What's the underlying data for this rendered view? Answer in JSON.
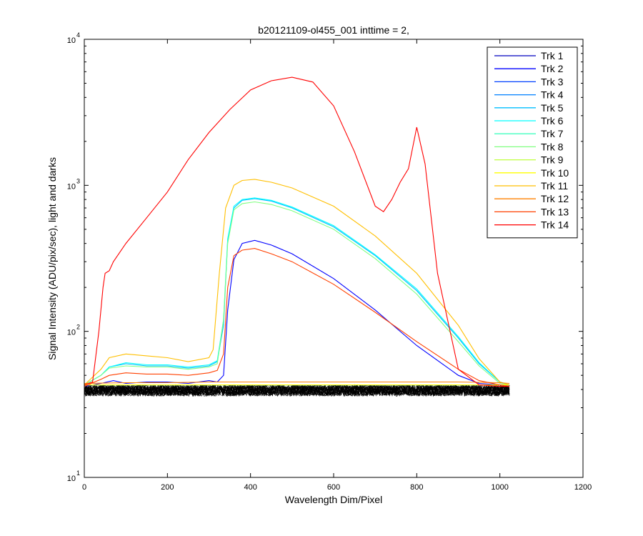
{
  "chart_data": {
    "type": "line",
    "title": "b20121109-ol455_001 inttime = 2,",
    "xlabel": "Wavelength Dim/Pixel",
    "ylabel": "Signal Intensity (ADU/pix/sec), light and darks",
    "xlim": [
      0,
      1200
    ],
    "ylim": [
      10,
      10000
    ],
    "yscale": "log",
    "grid": false,
    "legend_position": "top-right",
    "x_ticks": [
      0,
      200,
      400,
      600,
      800,
      1000,
      1200
    ],
    "x_tick_labels": [
      "0",
      "200",
      "400",
      "600",
      "800",
      "1000",
      "1200"
    ],
    "y_ticks": [
      {
        "value": 10,
        "base": "10",
        "exp": "1"
      },
      {
        "value": 100,
        "base": "10",
        "exp": "2"
      },
      {
        "value": 1000,
        "base": "10",
        "exp": "3"
      },
      {
        "value": 10000,
        "base": "10",
        "exp": "4"
      }
    ],
    "darks": {
      "x_range": [
        0,
        1023
      ],
      "y_min": 36,
      "y_max": 43,
      "color": "#000000"
    },
    "series": [
      {
        "name": "Trk 1",
        "color": "#0000bf",
        "x": [
          0,
          30,
          60,
          100,
          150,
          200,
          250,
          300,
          330,
          345,
          360,
          380,
          400,
          420,
          500,
          600,
          700,
          800,
          900,
          950,
          1000,
          1023
        ],
        "y": [
          43,
          43,
          43,
          43,
          43,
          43,
          43,
          43,
          43,
          43,
          43,
          43,
          43,
          43,
          43,
          43,
          43,
          43,
          43,
          43,
          43,
          43
        ]
      },
      {
        "name": "Trk 2",
        "color": "#0000ff",
        "x": [
          0,
          40,
          70,
          100,
          150,
          200,
          250,
          300,
          320,
          335,
          345,
          360,
          380,
          410,
          450,
          500,
          600,
          700,
          800,
          900,
          950,
          1000,
          1023
        ],
        "y": [
          42,
          44,
          46,
          44,
          45,
          45,
          44,
          46,
          45,
          50,
          140,
          310,
          400,
          420,
          390,
          340,
          230,
          140,
          80,
          50,
          44,
          43,
          43
        ]
      },
      {
        "name": "Trk 3",
        "color": "#0040ff",
        "x": [
          0,
          30,
          60,
          100,
          150,
          200,
          250,
          300,
          330,
          345,
          360,
          380,
          400,
          420,
          500,
          600,
          700,
          800,
          900,
          950,
          1000,
          1023
        ],
        "y": [
          43,
          43,
          43,
          43,
          43,
          43,
          43,
          43,
          43,
          43,
          43,
          43,
          43,
          43,
          43,
          43,
          43,
          43,
          43,
          43,
          43,
          43
        ]
      },
      {
        "name": "Trk 4",
        "color": "#0080ff",
        "x": [
          0,
          30,
          60,
          100,
          150,
          200,
          250,
          300,
          330,
          345,
          360,
          380,
          400,
          420,
          500,
          600,
          700,
          800,
          900,
          950,
          1000,
          1023
        ],
        "y": [
          43,
          43,
          43,
          43,
          43,
          43,
          43,
          43,
          43,
          43,
          43,
          43,
          43,
          43,
          43,
          43,
          43,
          43,
          43,
          43,
          43,
          43
        ]
      },
      {
        "name": "Trk 5",
        "color": "#00bfff",
        "x": [
          0,
          40,
          60,
          100,
          150,
          200,
          250,
          300,
          320,
          335,
          345,
          360,
          380,
          410,
          450,
          500,
          600,
          700,
          800,
          900,
          950,
          1000,
          1023
        ],
        "y": [
          43,
          50,
          57,
          60,
          58,
          58,
          56,
          58,
          62,
          110,
          420,
          700,
          790,
          810,
          780,
          700,
          520,
          330,
          190,
          90,
          60,
          45,
          43
        ]
      },
      {
        "name": "Trk 6",
        "color": "#00ffff",
        "x": [
          0,
          40,
          60,
          100,
          150,
          200,
          250,
          300,
          320,
          335,
          345,
          360,
          380,
          410,
          450,
          500,
          600,
          700,
          800,
          900,
          950,
          1000,
          1023
        ],
        "y": [
          43,
          50,
          57,
          61,
          59,
          59,
          57,
          59,
          63,
          120,
          430,
          720,
          800,
          820,
          790,
          710,
          530,
          335,
          195,
          92,
          61,
          45,
          43
        ]
      },
      {
        "name": "Trk 7",
        "color": "#40ffbf",
        "x": [
          0,
          30,
          60,
          100,
          150,
          200,
          250,
          300,
          330,
          345,
          360,
          380,
          400,
          420,
          500,
          600,
          700,
          800,
          900,
          950,
          1000,
          1023
        ],
        "y": [
          43,
          43,
          43,
          43,
          43,
          43,
          43,
          43,
          43,
          43,
          43,
          43,
          43,
          43,
          43,
          43,
          43,
          43,
          43,
          43,
          43,
          43
        ]
      },
      {
        "name": "Trk 8",
        "color": "#80ff80",
        "x": [
          0,
          40,
          60,
          100,
          150,
          200,
          250,
          300,
          320,
          335,
          345,
          360,
          380,
          410,
          450,
          500,
          600,
          700,
          800,
          900,
          950,
          1000,
          1023
        ],
        "y": [
          43,
          50,
          56,
          58,
          57,
          57,
          55,
          57,
          60,
          120,
          400,
          680,
          750,
          770,
          740,
          670,
          500,
          315,
          180,
          85,
          58,
          44,
          43
        ]
      },
      {
        "name": "Trk 9",
        "color": "#bfff40",
        "x": [
          0,
          30,
          60,
          100,
          150,
          200,
          250,
          300,
          330,
          345,
          360,
          380,
          400,
          420,
          500,
          600,
          700,
          800,
          900,
          950,
          1000,
          1023
        ],
        "y": [
          43,
          43,
          43,
          43,
          43,
          43,
          43,
          43,
          43,
          43,
          43,
          43,
          43,
          43,
          43,
          43,
          43,
          43,
          43,
          43,
          43,
          43
        ]
      },
      {
        "name": "Trk 10",
        "color": "#ffff00",
        "x": [
          0,
          30,
          60,
          100,
          150,
          200,
          250,
          300,
          330,
          345,
          360,
          380,
          400,
          420,
          500,
          600,
          700,
          800,
          900,
          950,
          1000,
          1023
        ],
        "y": [
          43,
          43,
          43,
          43,
          43,
          43,
          43,
          43,
          43,
          43,
          43,
          43,
          43,
          43,
          43,
          43,
          43,
          43,
          43,
          43,
          43,
          43
        ]
      },
      {
        "name": "Trk 11",
        "color": "#ffbf00",
        "x": [
          0,
          40,
          60,
          100,
          150,
          200,
          250,
          300,
          310,
          325,
          340,
          360,
          380,
          410,
          450,
          500,
          600,
          700,
          800,
          900,
          950,
          1000,
          1023
        ],
        "y": [
          43,
          55,
          66,
          70,
          68,
          66,
          62,
          66,
          75,
          250,
          700,
          1000,
          1080,
          1100,
          1050,
          960,
          720,
          450,
          250,
          110,
          65,
          45,
          43
        ]
      },
      {
        "name": "Trk 12",
        "color": "#ff8000",
        "x": [
          0,
          100,
          200,
          300,
          400,
          500,
          600,
          700,
          800,
          900,
          1000,
          1023
        ],
        "y": [
          44,
          44.5,
          44.5,
          45,
          45,
          45,
          45,
          45,
          45,
          45,
          44.5,
          44
        ]
      },
      {
        "name": "Trk 13",
        "color": "#ff4000",
        "x": [
          0,
          40,
          60,
          100,
          150,
          200,
          250,
          300,
          320,
          335,
          345,
          360,
          380,
          410,
          450,
          500,
          600,
          700,
          800,
          900,
          950,
          1000,
          1023
        ],
        "y": [
          42,
          47,
          50,
          52,
          51,
          51,
          50,
          52,
          54,
          70,
          200,
          330,
          360,
          370,
          340,
          300,
          210,
          135,
          85,
          55,
          46,
          43,
          42
        ]
      },
      {
        "name": "Trk 14",
        "color": "#ff0000",
        "x": [
          0,
          20,
          35,
          45,
          50,
          60,
          70,
          100,
          150,
          200,
          250,
          300,
          350,
          400,
          450,
          500,
          550,
          600,
          650,
          700,
          720,
          740,
          760,
          780,
          800,
          820,
          850,
          900,
          950,
          1000,
          1023
        ],
        "y": [
          43,
          45,
          100,
          200,
          250,
          260,
          300,
          400,
          600,
          900,
          1500,
          2300,
          3300,
          4500,
          5200,
          5500,
          5100,
          3500,
          1700,
          720,
          660,
          800,
          1050,
          1300,
          2500,
          1400,
          250,
          55,
          43,
          42,
          42
        ]
      }
    ]
  }
}
